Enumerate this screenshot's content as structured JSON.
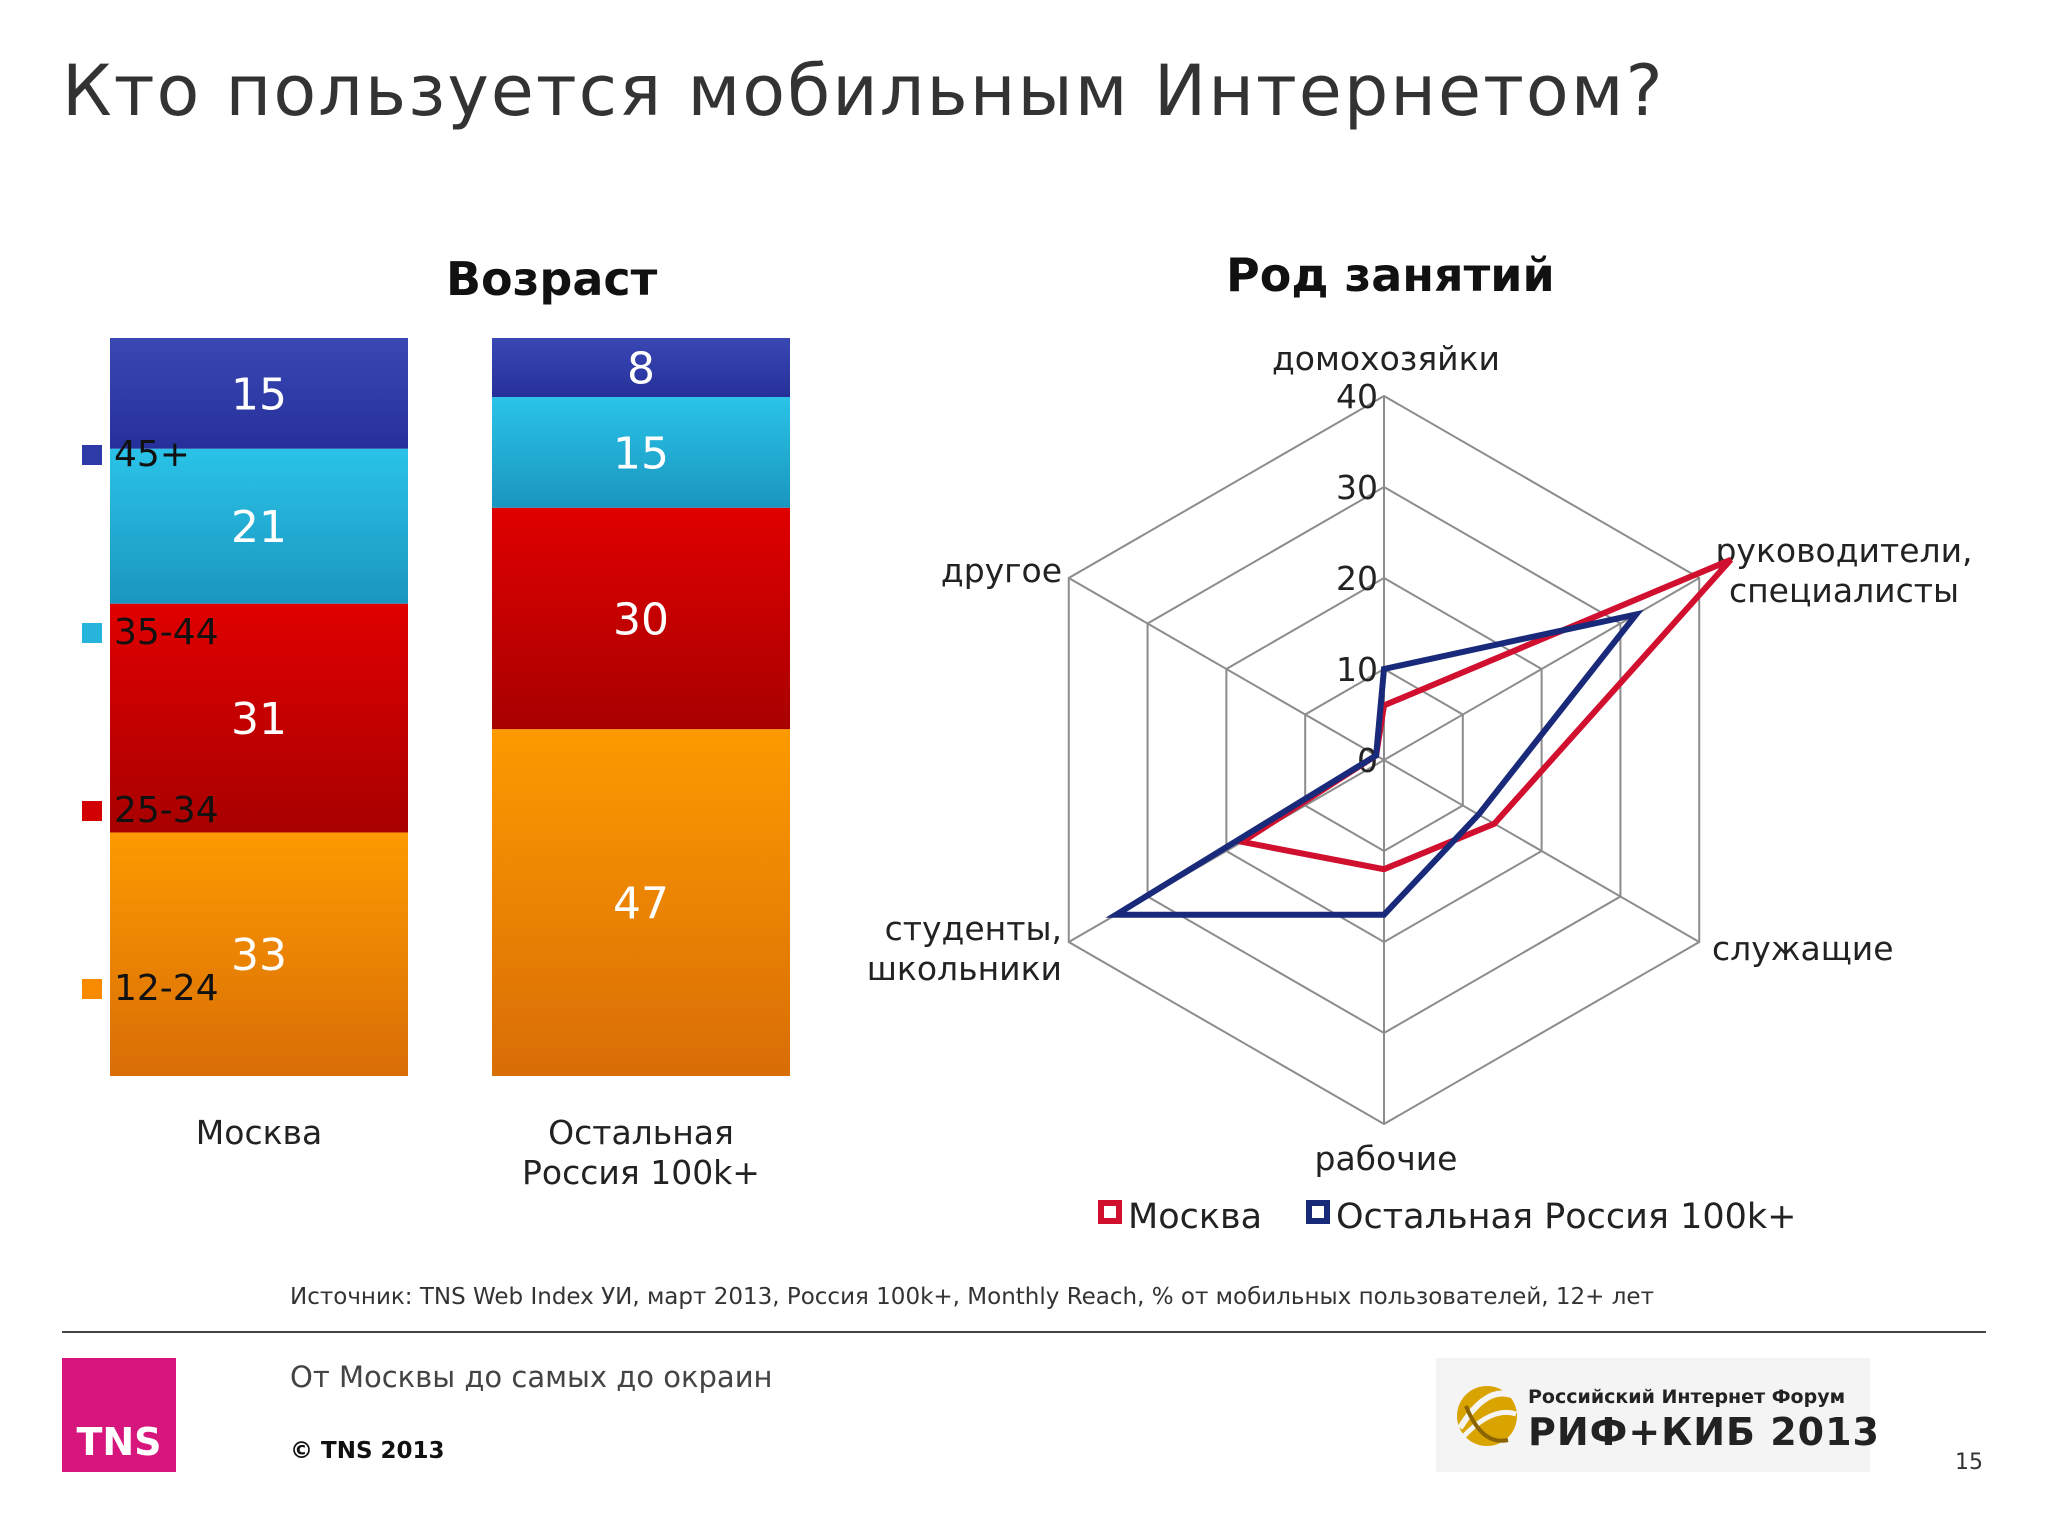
{
  "slide": {
    "title": "Кто пользуется мобильным Интернетом?",
    "source": "Источник: TNS Web Index УИ, март 2013, Россия 100k+, Monthly Reach, % от мобильных пользователей, 12+ лет",
    "tagline": "От Москвы до самых до окраин",
    "copyright": "© TNS 2013",
    "page_number": "15",
    "tns_logo": "TNS",
    "rif_logo_line1": "Российский Интернет Форум",
    "rif_logo_line2": "РИФ+КИБ 2013"
  },
  "colors": {
    "age_45_plus": "#2e3aa8",
    "age_35_44": "#26b4dc",
    "age_25_34": "#d20000",
    "age_12_24": "#f78a00",
    "moscow": "#d0102e",
    "rest_russia": "#1a2a7a"
  },
  "chart_data": [
    {
      "type": "bar",
      "stacked": true,
      "title": "Возраст",
      "categories": [
        "Москва",
        "Остальная Россия 100k+"
      ],
      "series": [
        {
          "name": "12-24",
          "values": [
            33,
            47
          ]
        },
        {
          "name": "25-34",
          "values": [
            31,
            30
          ]
        },
        {
          "name": "35-44",
          "values": [
            21,
            15
          ]
        },
        {
          "name": "45+",
          "values": [
            15,
            8
          ]
        }
      ],
      "legend_position": "left"
    },
    {
      "type": "radar",
      "title": "Род занятий",
      "axes": [
        "домохозяйки",
        "руководители, специалисты",
        "служащие",
        "рабочие",
        "студенты, школьники",
        "другое"
      ],
      "ticks": [
        0,
        10,
        20,
        30,
        40
      ],
      "range": [
        0,
        40
      ],
      "series": [
        {
          "name": "Москва",
          "values": [
            6,
            44,
            14,
            12,
            18,
            1
          ]
        },
        {
          "name": "Остальная Россия 100k+",
          "values": [
            10,
            32,
            12,
            17,
            34,
            1
          ]
        }
      ],
      "legend_position": "bottom"
    }
  ]
}
